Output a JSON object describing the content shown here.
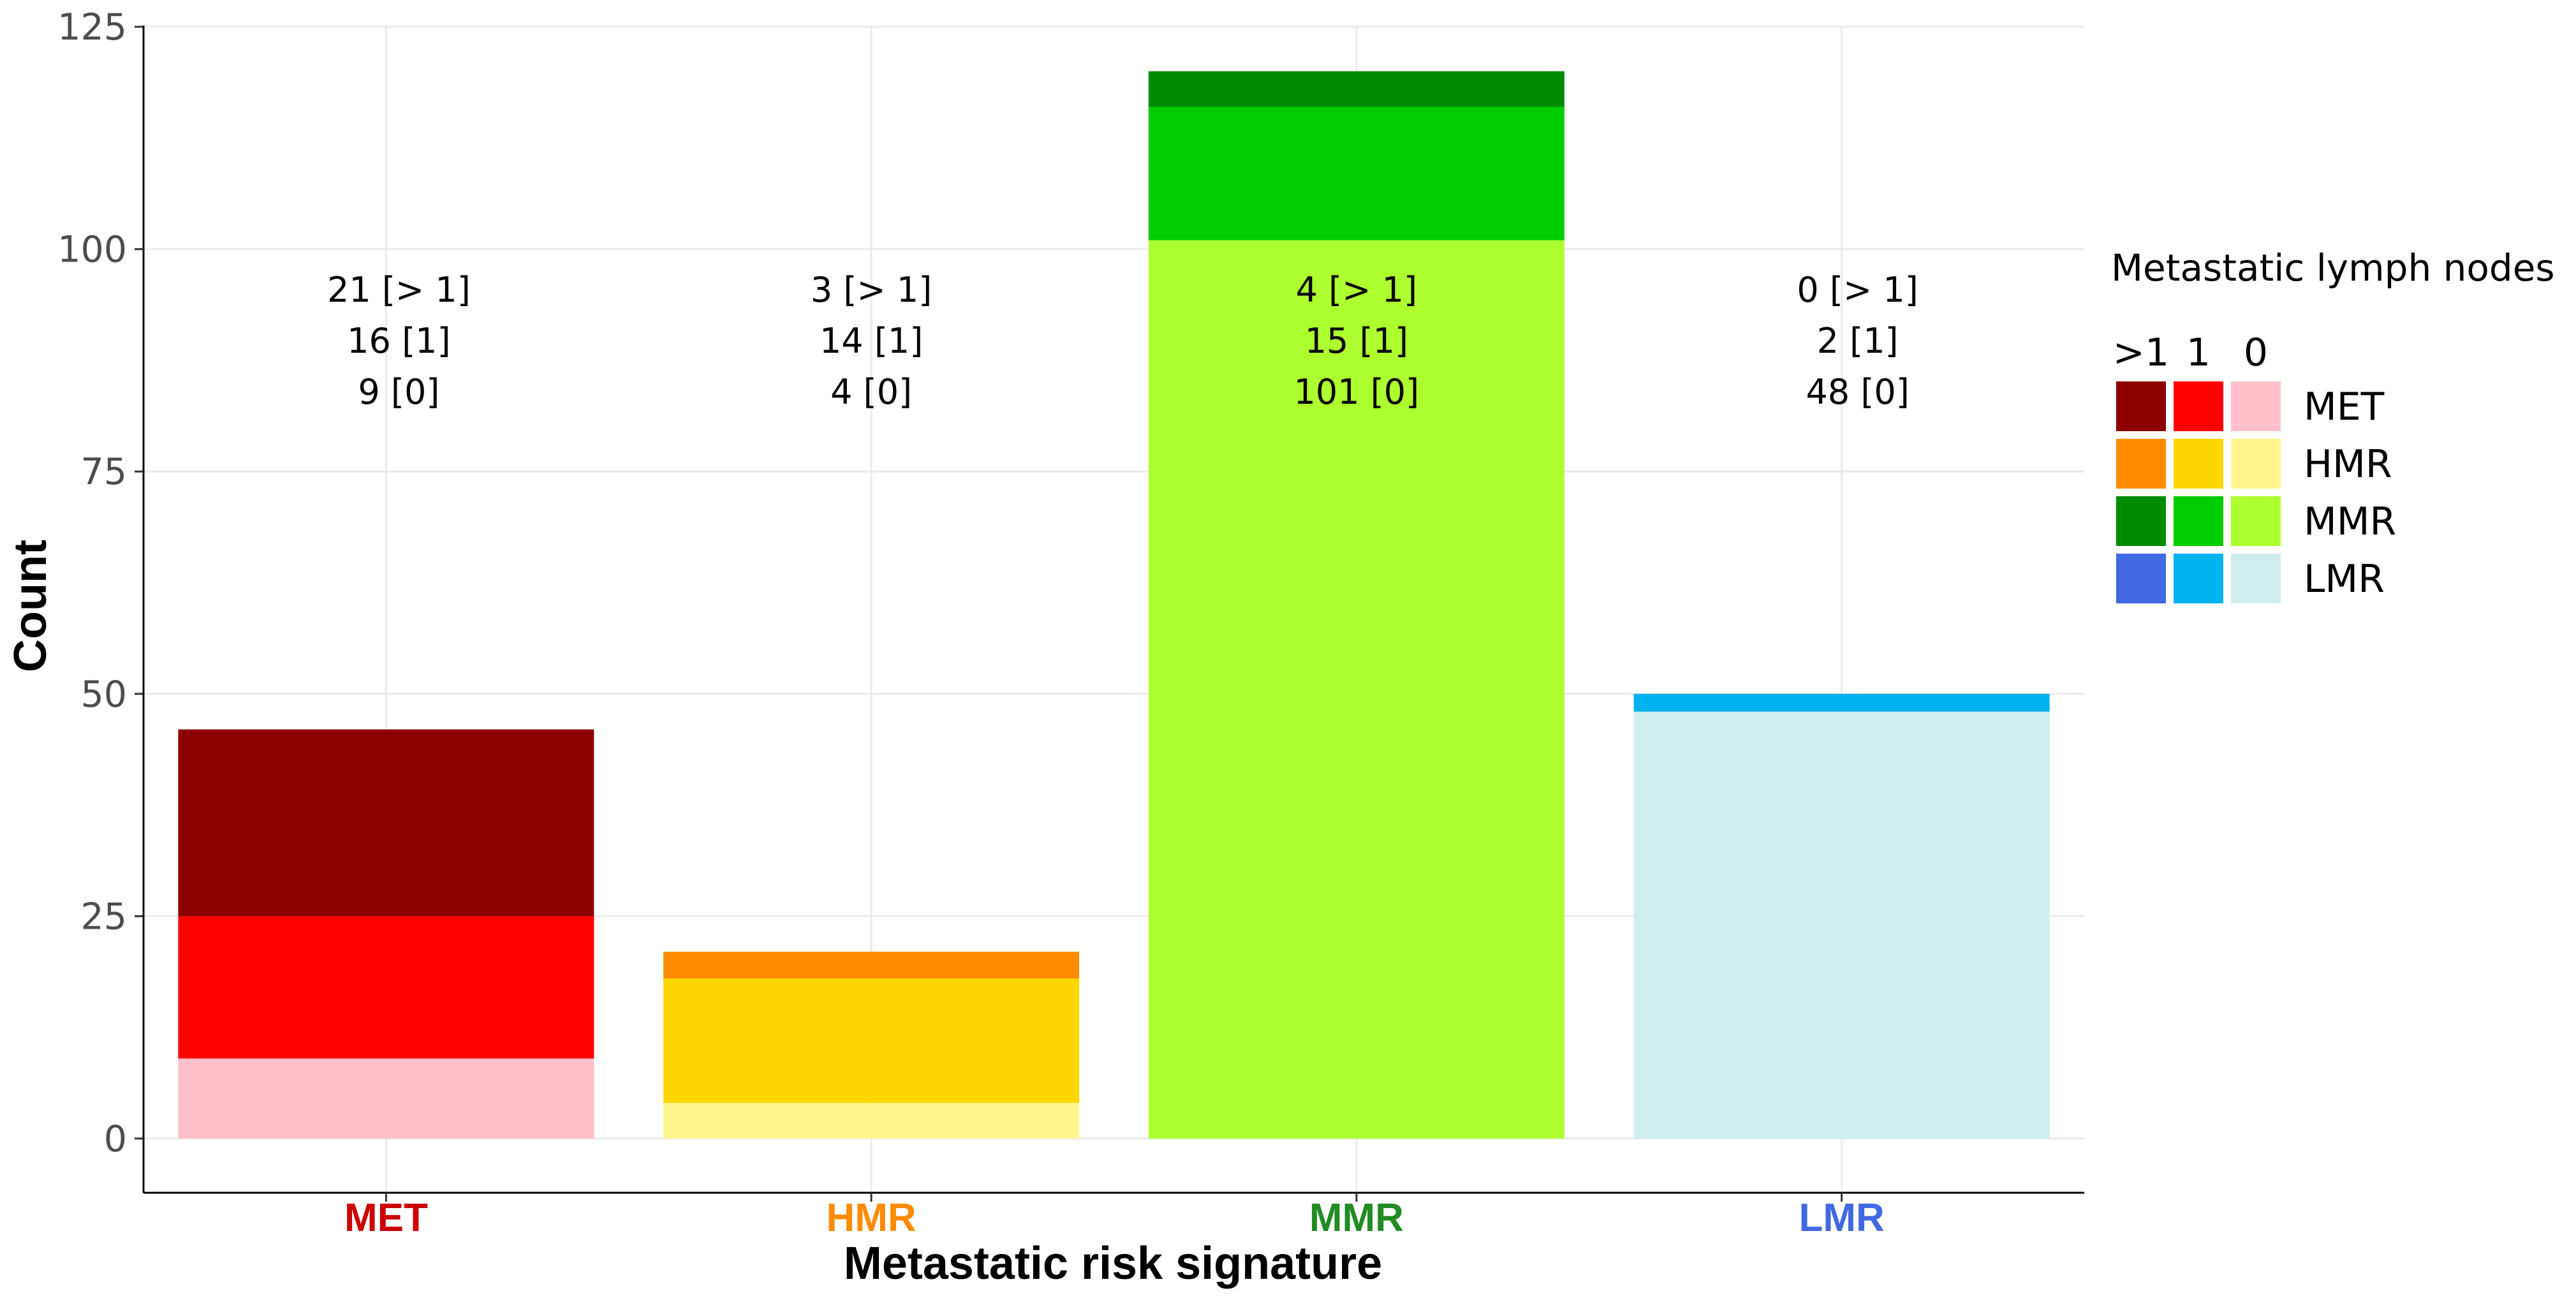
{
  "chart_data": {
    "type": "bar",
    "stacked": true,
    "title": "",
    "xlabel": "Metastatic risk signature",
    "ylabel": "Count",
    "ylim": [
      0,
      125
    ],
    "yticks": [
      "0",
      "25",
      "50",
      "75",
      "100",
      "125"
    ],
    "grid": true,
    "categories": [
      {
        "label": "MET",
        "color": "#cc0000"
      },
      {
        "label": "HMR",
        "color": "#ff8c00"
      },
      {
        "label": "MMR",
        "color": "#228b22"
      },
      {
        "label": "LMR",
        "color": "#4169e1"
      }
    ],
    "series": [
      {
        "name": "0",
        "values": [
          9,
          4,
          101,
          48
        ],
        "colors": [
          "#ffc0cb",
          "#fff68f",
          "#adff2f",
          "#d1eeee"
        ]
      },
      {
        "name": "1",
        "values": [
          16,
          14,
          15,
          2
        ],
        "colors": [
          "#ff0000",
          "#ffd700",
          "#00cd00",
          "#00b2ee"
        ]
      },
      {
        "name": ">1",
        "values": [
          21,
          3,
          4,
          0
        ],
        "colors": [
          "#8b0000",
          "#ff8c00",
          "#008b00",
          "#4169e1"
        ]
      }
    ],
    "annotations": [
      [
        "21 [> 1]",
        "16 [1]",
        "9 [0]"
      ],
      [
        "3 [> 1]",
        "14 [1]",
        "4 [0]"
      ],
      [
        "4 [> 1]",
        "15 [1]",
        "101 [0]"
      ],
      [
        "0 [> 1]",
        "2 [1]",
        "48 [0]"
      ]
    ],
    "legend": {
      "title": "Metastatic lymph nodes",
      "position": "right",
      "column_headers": [
        ">1",
        "1",
        "0"
      ],
      "rows": [
        {
          "label": "MET",
          "colors": [
            "#8b0000",
            "#ff0000",
            "#ffc0cb"
          ]
        },
        {
          "label": "HMR",
          "colors": [
            "#ff8c00",
            "#ffd700",
            "#fff68f"
          ]
        },
        {
          "label": "MMR",
          "colors": [
            "#008b00",
            "#00cd00",
            "#adff2f"
          ]
        },
        {
          "label": "LMR",
          "colors": [
            "#4169e1",
            "#00b2ee",
            "#d1eeee"
          ]
        }
      ]
    }
  }
}
